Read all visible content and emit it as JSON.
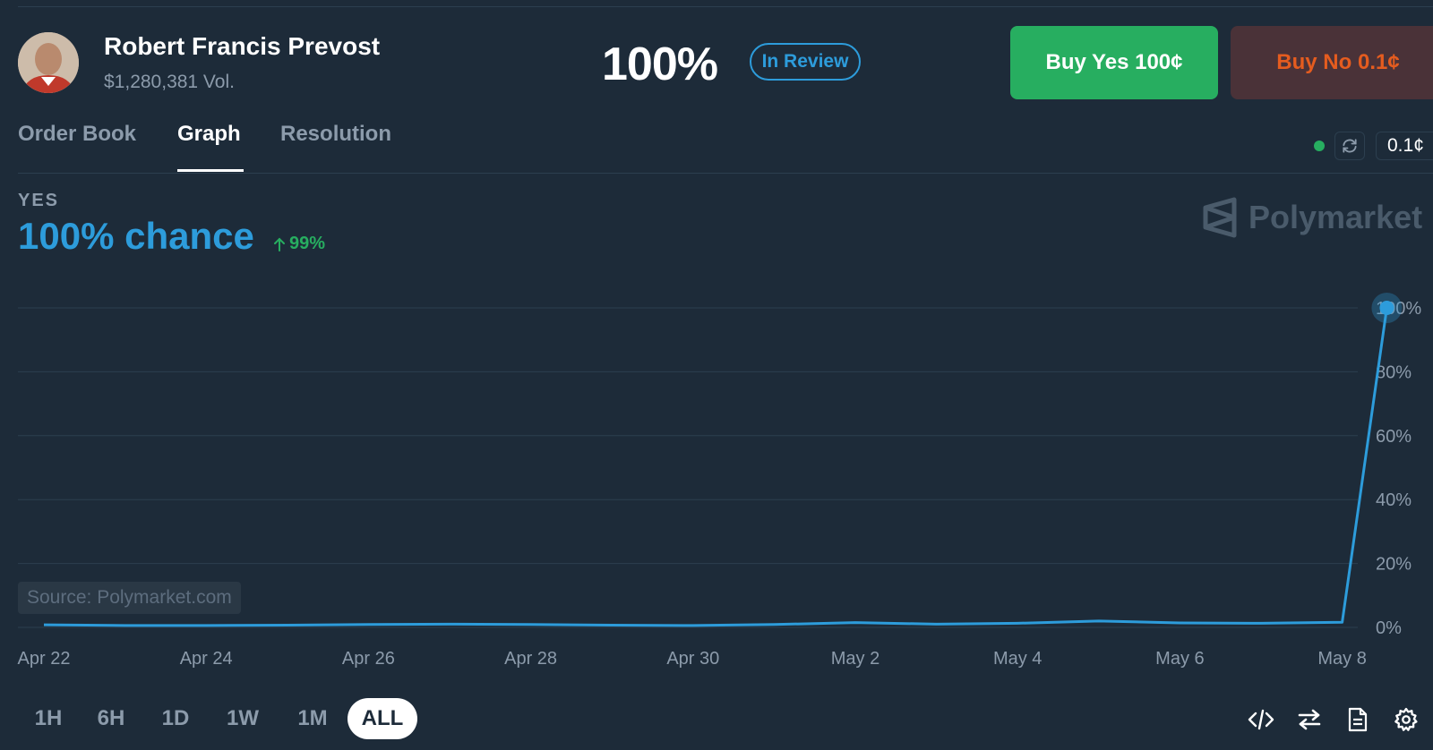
{
  "market": {
    "name": "Robert Francis Prevost",
    "volume": "$1,280,381 Vol.",
    "percent": "100%",
    "status": "In Review"
  },
  "buttons": {
    "buy_yes": "Buy Yes 100¢",
    "buy_no": "Buy No 0.1¢"
  },
  "tabs": [
    {
      "label": "Order Book"
    },
    {
      "label": "Graph",
      "active": true
    },
    {
      "label": "Resolution"
    }
  ],
  "toolbar": {
    "price": "0.1¢"
  },
  "summary": {
    "outcome": "YES",
    "chance": "100% chance",
    "change": "99%"
  },
  "watermark": "Polymarket",
  "source": "Source: Polymarket.com",
  "chart_data": {
    "type": "line",
    "x_ticks": [
      "Apr 22",
      "Apr 24",
      "Apr 26",
      "Apr 28",
      "Apr 30",
      "May 2",
      "May 4",
      "May 6",
      "May 8"
    ],
    "y_ticks": [
      "0%",
      "20%",
      "40%",
      "60%",
      "80%",
      "100%"
    ],
    "ylim": [
      0,
      100
    ],
    "grid": true,
    "series": [
      {
        "color": "#2d9cdb",
        "points": [
          [
            "Apr 22",
            0.8
          ],
          [
            "Apr 23",
            0.6
          ],
          [
            "Apr 24",
            0.6
          ],
          [
            "Apr 25",
            0.7
          ],
          [
            "Apr 26",
            0.9
          ],
          [
            "Apr 27",
            1.0
          ],
          [
            "Apr 28",
            0.9
          ],
          [
            "Apr 29",
            0.7
          ],
          [
            "Apr 30",
            0.6
          ],
          [
            "May 1",
            0.9
          ],
          [
            "May 2",
            1.5
          ],
          [
            "May 3",
            1.0
          ],
          [
            "May 4",
            1.3
          ],
          [
            "May 5",
            2.0
          ],
          [
            "May 6",
            1.4
          ],
          [
            "May 7",
            1.3
          ],
          [
            "May 8",
            1.6
          ],
          [
            "May 8 end",
            100
          ]
        ]
      }
    ]
  },
  "ranges": [
    {
      "label": "1H"
    },
    {
      "label": "6H"
    },
    {
      "label": "1D"
    },
    {
      "label": "1W"
    },
    {
      "label": "1M"
    },
    {
      "label": "ALL",
      "active": true
    }
  ],
  "colors": {
    "background": "#1d2b39",
    "accent_blue": "#2d9cdb",
    "yes_green": "#27ae60",
    "no_orange": "#e55c1f",
    "muted": "#8c9bab"
  },
  "icons": [
    "refresh-icon",
    "code-icon",
    "swap-icon",
    "document-icon",
    "settings-icon",
    "arrow-up-icon",
    "polymarket-logo-icon"
  ]
}
